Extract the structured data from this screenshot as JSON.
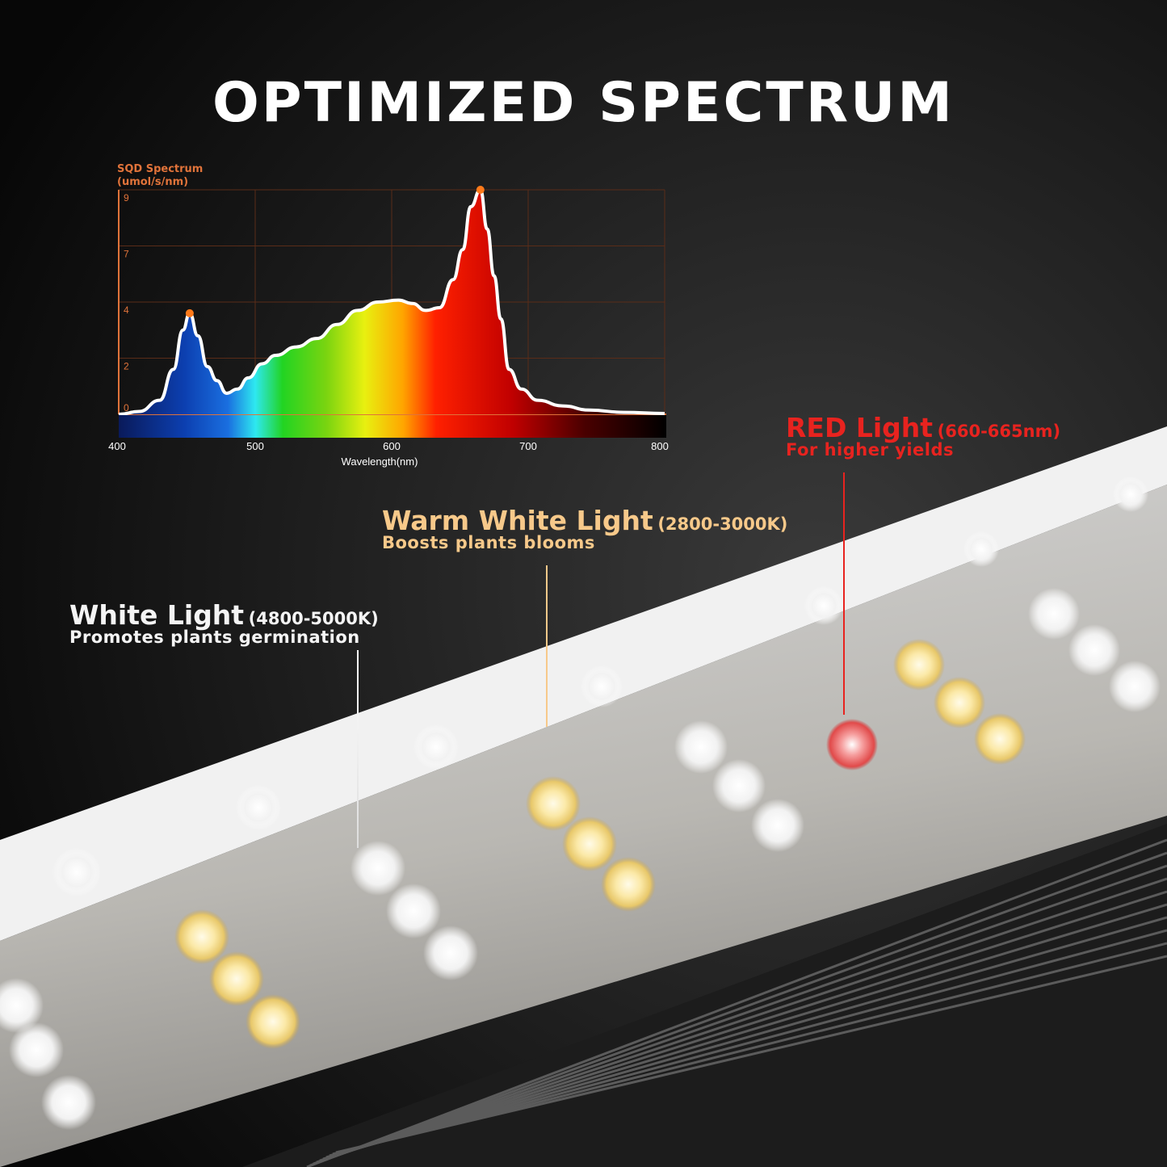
{
  "title": "OPTIMIZED SPECTRUM",
  "colors": {
    "background": "#0c0c0c",
    "axis": "#e0733a",
    "white_light": "#f4f4f4",
    "warm_light": "#f7c98a",
    "red_light": "#e8231f"
  },
  "labels": [
    {
      "name": "White Light",
      "range": "(4800-5000K)",
      "description": "Promotes plants germination"
    },
    {
      "name": "Warm White Light",
      "range": "(2800-3000K)",
      "description": "Boosts plants blooms"
    },
    {
      "name": "RED Light",
      "range": "(660-665nm)",
      "description": "For higher yields"
    }
  ],
  "chart_data": {
    "type": "area",
    "ylabel_line1": "SQD Spectrum",
    "ylabel_line2": "(umol/s/nm)",
    "xlabel": "Wavelength(nm)",
    "xlim": [
      400,
      800
    ],
    "x_ticks": [
      "400",
      "500",
      "600",
      "700",
      "800"
    ],
    "y_ticks": [
      "0",
      "2",
      "4",
      "7",
      "9"
    ],
    "grid": true,
    "legend": "none",
    "fill": "visible-spectrum gradient",
    "peaks": [
      {
        "x": 452,
        "y": 3.6
      },
      {
        "x": 665,
        "y": 9
      }
    ],
    "x": [
      400,
      415,
      430,
      440,
      447,
      452,
      458,
      465,
      472,
      479,
      487,
      495,
      505,
      515,
      530,
      545,
      560,
      575,
      590,
      605,
      615,
      625,
      635,
      645,
      652,
      658,
      665,
      670,
      675,
      680,
      686,
      695,
      707,
      725,
      745,
      770,
      800
    ],
    "y": [
      0,
      0.1,
      0.5,
      1.6,
      3,
      3.6,
      2.8,
      1.7,
      1.2,
      0.75,
      0.9,
      1.3,
      1.8,
      2.1,
      2.4,
      2.7,
      3.2,
      3.7,
      4.0,
      4.1,
      3.95,
      3.7,
      3.8,
      5.2,
      6.8,
      8.4,
      9,
      7.6,
      5.4,
      3.4,
      1.6,
      0.9,
      0.5,
      0.3,
      0.15,
      0.07,
      0.03
    ]
  }
}
